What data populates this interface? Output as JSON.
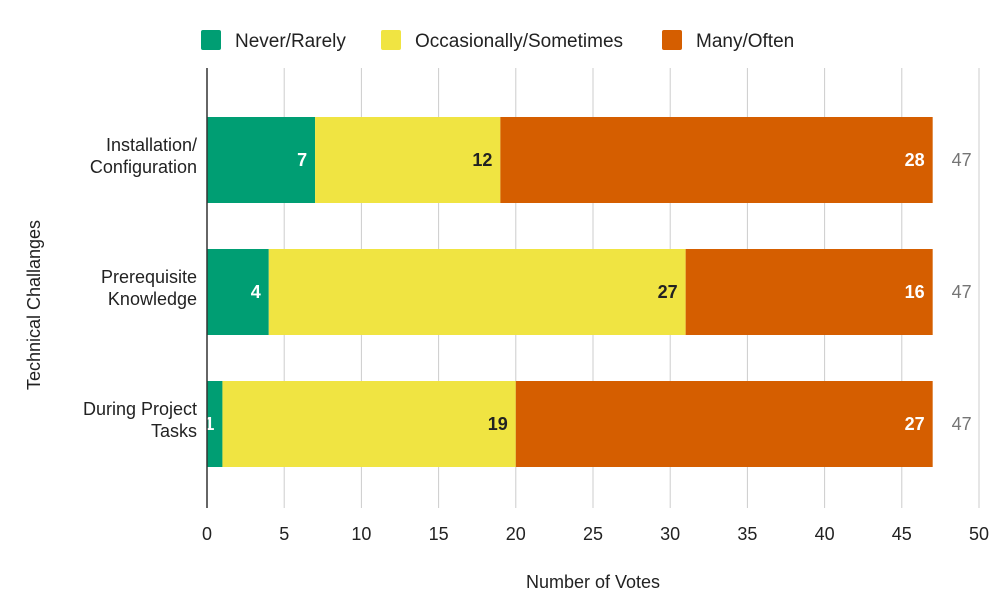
{
  "chart_data": {
    "type": "bar",
    "orientation": "horizontal",
    "stacked": true,
    "categories": [
      [
        "Installation/",
        "Configuration"
      ],
      [
        "Prerequisite",
        "Knowledge"
      ],
      [
        "During Project",
        "Tasks"
      ]
    ],
    "series": [
      {
        "name": "Never/Rarely",
        "values": [
          7,
          4,
          1
        ],
        "color": "#009e73"
      },
      {
        "name": "Occasionally/Sometimes",
        "values": [
          12,
          27,
          19
        ],
        "color": "#f0e442"
      },
      {
        "name": "Many/Often",
        "values": [
          28,
          16,
          27
        ],
        "color": "#d55e00"
      }
    ],
    "totals": [
      47,
      47,
      47
    ],
    "xlabel": "Number of Votes",
    "ylabel": "Technical Challanges",
    "xlim": [
      0,
      50
    ],
    "xticks": [
      0,
      5,
      10,
      15,
      20,
      25,
      30,
      35,
      40,
      45,
      50
    ],
    "grid": true,
    "legend_position": "top"
  }
}
